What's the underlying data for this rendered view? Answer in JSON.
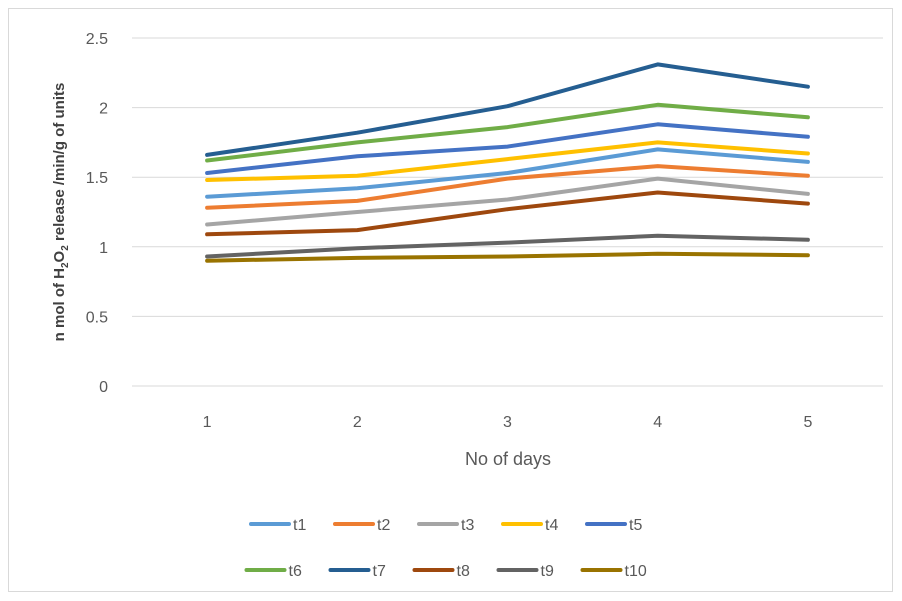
{
  "chart_data": {
    "type": "line",
    "title": "",
    "xlabel": "No of days",
    "ylabel_parts": [
      "n mol of H",
      "2",
      "O",
      "2",
      " release /min/g of units"
    ],
    "categories": [
      "1",
      "2",
      "3",
      "4",
      "5"
    ],
    "ylim": [
      0,
      2.5
    ],
    "yticks": [
      "0",
      "0.5",
      "1",
      "1.5",
      "2",
      "2.5"
    ],
    "ytick_values": [
      0,
      0.5,
      1,
      1.5,
      2,
      2.5
    ],
    "grid": true,
    "legend_position": "bottom",
    "series": [
      {
        "name": "t1",
        "color": "#5B9BD5",
        "values": [
          1.36,
          1.42,
          1.53,
          1.7,
          1.61
        ]
      },
      {
        "name": "t2",
        "color": "#ED7D31",
        "values": [
          1.28,
          1.33,
          1.49,
          1.58,
          1.51
        ]
      },
      {
        "name": "t3",
        "color": "#A5A5A5",
        "values": [
          1.16,
          1.25,
          1.34,
          1.49,
          1.38
        ]
      },
      {
        "name": "t4",
        "color": "#FFC000",
        "values": [
          1.48,
          1.51,
          1.63,
          1.75,
          1.67
        ]
      },
      {
        "name": "t5",
        "color": "#4472C4",
        "values": [
          1.53,
          1.65,
          1.72,
          1.88,
          1.79
        ]
      },
      {
        "name": "t6",
        "color": "#70AD47",
        "values": [
          1.62,
          1.75,
          1.86,
          2.02,
          1.93
        ]
      },
      {
        "name": "t7",
        "color": "#255E91",
        "values": [
          1.66,
          1.82,
          2.01,
          2.31,
          2.15
        ]
      },
      {
        "name": "t8",
        "color": "#9E480E",
        "values": [
          1.09,
          1.12,
          1.27,
          1.39,
          1.31
        ]
      },
      {
        "name": "t9",
        "color": "#636363",
        "values": [
          0.93,
          0.99,
          1.03,
          1.08,
          1.05
        ]
      },
      {
        "name": "t10",
        "color": "#997300",
        "values": [
          0.9,
          0.92,
          0.93,
          0.95,
          0.94
        ]
      }
    ]
  }
}
